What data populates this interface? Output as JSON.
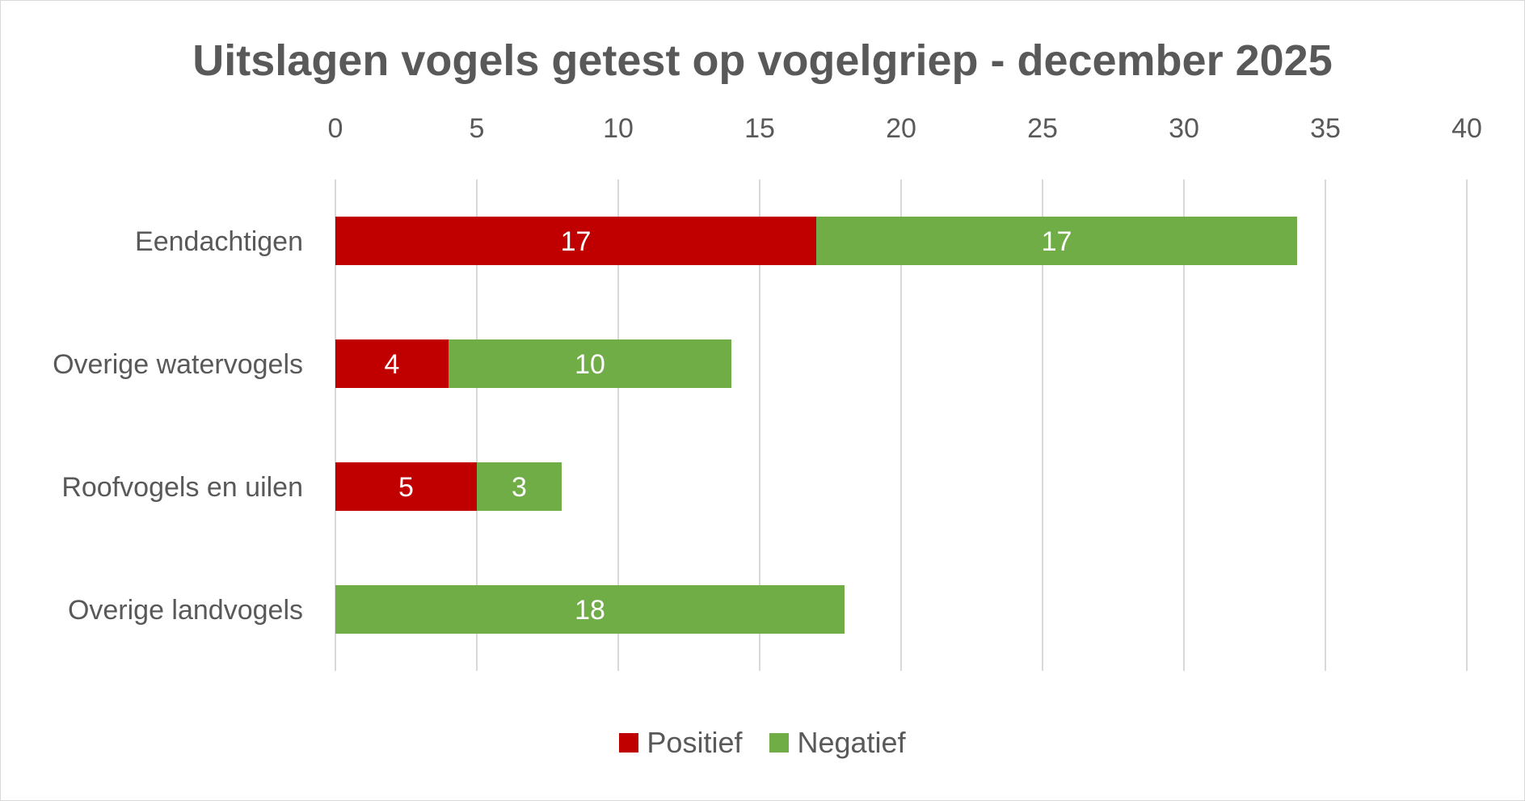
{
  "chart_data": {
    "type": "bar",
    "orientation": "horizontal",
    "stacked": true,
    "title": "Uitslagen vogels getest op vogelgriep - december 2025",
    "xlabel": "",
    "ylabel": "",
    "xlim": [
      0,
      40
    ],
    "x_ticks": [
      "0",
      "5",
      "10",
      "15",
      "20",
      "25",
      "30",
      "35",
      "40"
    ],
    "x_axis_position": "top",
    "grid": true,
    "categories": [
      "Eendachtigen",
      "Overige watervogels",
      "Roofvogels en uilen",
      "Overige landvogels"
    ],
    "series": [
      {
        "name": "Positief",
        "color": "#c00000",
        "values": [
          17,
          4,
          5,
          0
        ]
      },
      {
        "name": "Negatief",
        "color": "#70ad47",
        "values": [
          17,
          10,
          3,
          18
        ]
      }
    ],
    "legend_position": "bottom"
  }
}
